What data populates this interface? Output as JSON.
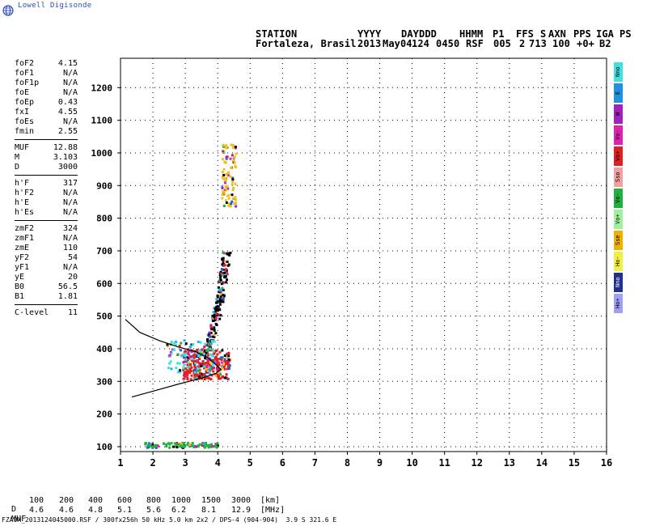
{
  "logo": {
    "text": "Lowell Digisonde",
    "icon": "globe-icon"
  },
  "header": {
    "row1": [
      "STATION",
      "YYYY",
      "DAY",
      "DDD",
      "HHMM",
      "P1",
      "FFS",
      "S",
      "AXN",
      "PPS",
      "IGA",
      "PS"
    ],
    "row2": [
      "Fortaleza, Brasil",
      "2013",
      "May04",
      "124",
      "0450",
      "RSF",
      "005",
      "2",
      "713",
      "100",
      "+0+",
      "B2"
    ]
  },
  "params": [
    {
      "key": "foF2",
      "value": "4.15"
    },
    {
      "key": "foF1",
      "value": "N/A"
    },
    {
      "key": "foF1p",
      "value": "N/A"
    },
    {
      "key": "foE",
      "value": "N/A"
    },
    {
      "key": "foEp",
      "value": "0.43"
    },
    {
      "key": "fxI",
      "value": "4.55"
    },
    {
      "key": "foEs",
      "value": "N/A"
    },
    {
      "key": "fmin",
      "value": "2.55"
    },
    {
      "key": "MUF",
      "value": "12.88"
    },
    {
      "key": "M",
      "value": "3.103"
    },
    {
      "key": "D",
      "value": "3000"
    },
    {
      "key": "h'F",
      "value": "317"
    },
    {
      "key": "h'F2",
      "value": "N/A"
    },
    {
      "key": "h'E",
      "value": "N/A"
    },
    {
      "key": "h'Es",
      "value": "N/A"
    },
    {
      "key": "zmF2",
      "value": "324"
    },
    {
      "key": "zmF1",
      "value": "N/A"
    },
    {
      "key": "zmE",
      "value": "110"
    },
    {
      "key": "yF2",
      "value": "54"
    },
    {
      "key": "yF1",
      "value": "N/A"
    },
    {
      "key": "yE",
      "value": "20"
    },
    {
      "key": "B0",
      "value": "56.5"
    },
    {
      "key": "B1",
      "value": "1.81"
    },
    {
      "key": "C-level",
      "value": "11"
    }
  ],
  "legend": [
    {
      "label": "Nno",
      "color": "#40e0e0"
    },
    {
      "label": "E",
      "color": "#2090e0"
    },
    {
      "label": "W",
      "color": "#a020c0"
    },
    {
      "label": "Vo-",
      "color": "#e020b0"
    },
    {
      "label": "Vo+",
      "color": "#e02020"
    },
    {
      "label": "Sso",
      "color": "#f0a0a0"
    },
    {
      "label": "Vo-",
      "color": "#20b040"
    },
    {
      "label": "Vo+",
      "color": "#a0f0a0"
    },
    {
      "label": "Sse",
      "color": "#f0b000"
    },
    {
      "label": "Ho-",
      "color": "#f0f040"
    },
    {
      "label": "Nno",
      "color": "#203090"
    },
    {
      "label": "Ho+",
      "color": "#a0a0f0"
    }
  ],
  "footer": {
    "d_label": "D",
    "d_values": [
      "100",
      "200",
      "400",
      "600",
      "800",
      "1000",
      "1500",
      "3000"
    ],
    "d_unit": "[km]",
    "muf_label": "MUF",
    "muf_values": [
      "4.6",
      "4.6",
      "4.8",
      "5.1",
      "5.6",
      "6.2",
      "8.1",
      "12.9"
    ],
    "muf_unit": "[MHz]",
    "file_line": "FZA0M_2013124045000.RSF / 300fx256h 50 kHz 5.0 km 2x2 / DPS-4 (904-904)  3.9 S 321.6 E"
  },
  "chart_data": {
    "type": "scatter",
    "title": "",
    "xlabel": "",
    "ylabel": "",
    "xlim": [
      1,
      16
    ],
    "ylim": [
      85,
      1290
    ],
    "xticks": [
      1,
      2,
      3,
      4,
      5,
      6,
      7,
      8,
      9,
      10,
      11,
      12,
      13,
      14,
      15,
      16
    ],
    "yticks": [
      100,
      200,
      300,
      400,
      500,
      600,
      700,
      800,
      900,
      1000,
      1100,
      1200
    ],
    "grid": true,
    "profile_curve": [
      [
        1.15,
        490
      ],
      [
        1.6,
        450
      ],
      [
        2.2,
        425
      ],
      [
        2.8,
        405
      ],
      [
        3.3,
        392
      ],
      [
        3.7,
        372
      ],
      [
        3.95,
        350
      ],
      [
        4.1,
        337
      ],
      [
        3.95,
        325
      ],
      [
        3.5,
        310
      ],
      [
        2.8,
        292
      ],
      [
        2.0,
        270
      ],
      [
        1.35,
        252
      ]
    ],
    "echo_regions": [
      {
        "name": "F2 O-trace",
        "color": "#e02020",
        "x": [
          2.9,
          4.35
        ],
        "y": [
          310,
          400
        ]
      },
      {
        "name": "F2 trace",
        "color": "#000000",
        "x": [
          3.3,
          4.4
        ],
        "y": [
          380,
          700
        ]
      },
      {
        "name": "F2 high",
        "color": "#f0c020",
        "x": [
          4.1,
          4.55
        ],
        "y": [
          840,
          1030
        ]
      },
      {
        "name": "low echoes",
        "color": "#20b040",
        "x": [
          1.7,
          4.0
        ],
        "y": [
          100,
          115
        ]
      },
      {
        "name": "spread F",
        "color": "#40e0e0",
        "x": [
          2.4,
          3.9
        ],
        "y": [
          330,
          430
        ]
      }
    ]
  }
}
